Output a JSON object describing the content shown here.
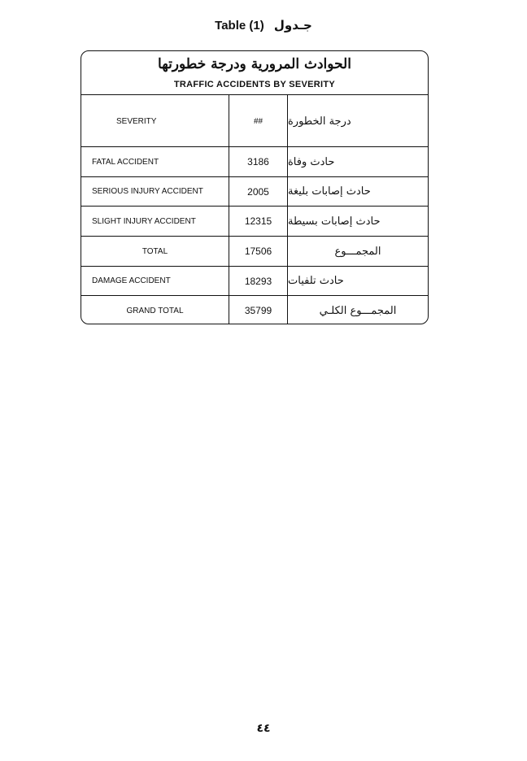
{
  "caption": {
    "english": "Table (1)",
    "arabic": "جـدول"
  },
  "table": {
    "title_arabic": "الحوادث المرورية ودرجة خطورتها",
    "title_english": "TRAFFIC ACCIDENTS BY SEVERITY",
    "headers": {
      "severity": "SEVERITY",
      "count": "##",
      "severity_arabic": "درجة الخطورة"
    },
    "rows": [
      {
        "severity": "FATAL ACCIDENT",
        "count": "3186",
        "arabic": "حادث وفاة"
      },
      {
        "severity": "SERIOUS INJURY ACCIDENT",
        "count": "2005",
        "arabic": "حادث إصابات بليغة"
      },
      {
        "severity": "SLIGHT INJURY ACCIDENT",
        "count": "12315",
        "arabic": "حادث إصابات بسيطة"
      },
      {
        "severity": "TOTAL",
        "count": "17506",
        "arabic": "المجمـــوع"
      },
      {
        "severity": "DAMAGE ACCIDENT",
        "count": "18293",
        "arabic": "حادث تلفيات"
      },
      {
        "severity": "GRAND TOTAL",
        "count": "35799",
        "arabic": "المجمـــوع الكلـي"
      }
    ]
  },
  "page_number": "٤٤"
}
